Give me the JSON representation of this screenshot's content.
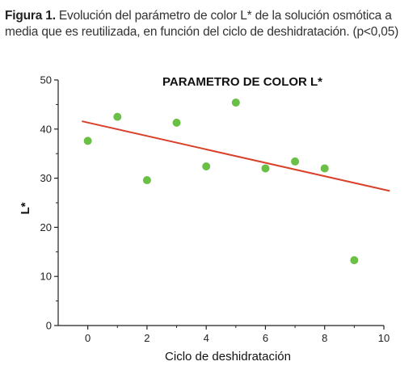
{
  "caption": {
    "label": "Figura 1.",
    "text": "Evolución del parámetro de color L* de la solución osmótica a media que es reutilizada, en función del ciclo de deshidratación. (p<0,05)"
  },
  "colors": {
    "points": "#6abf45",
    "trend": "#d9412a",
    "axis": "#222222"
  },
  "chart_data": {
    "type": "scatter",
    "title": "PARAMETRO DE COLOR L*",
    "xlabel": "Ciclo de deshidratación",
    "ylabel": "L*",
    "xlim": [
      -1,
      10
    ],
    "ylim": [
      0,
      50
    ],
    "x_ticks": [
      0,
      2,
      4,
      6,
      8,
      10
    ],
    "y_ticks": [
      0,
      10,
      20,
      30,
      40,
      50
    ],
    "grid": false,
    "series": [
      {
        "x": [
          0,
          1,
          2,
          3,
          4,
          5,
          6,
          7,
          8,
          9
        ],
        "y": [
          37.6,
          42.5,
          29.6,
          41.3,
          32.4,
          45.4,
          32.0,
          33.4,
          32.0,
          13.3
        ]
      }
    ],
    "trendline": {
      "x": [
        -0.2,
        10.2
      ],
      "y": [
        41.6,
        27.4
      ]
    }
  }
}
